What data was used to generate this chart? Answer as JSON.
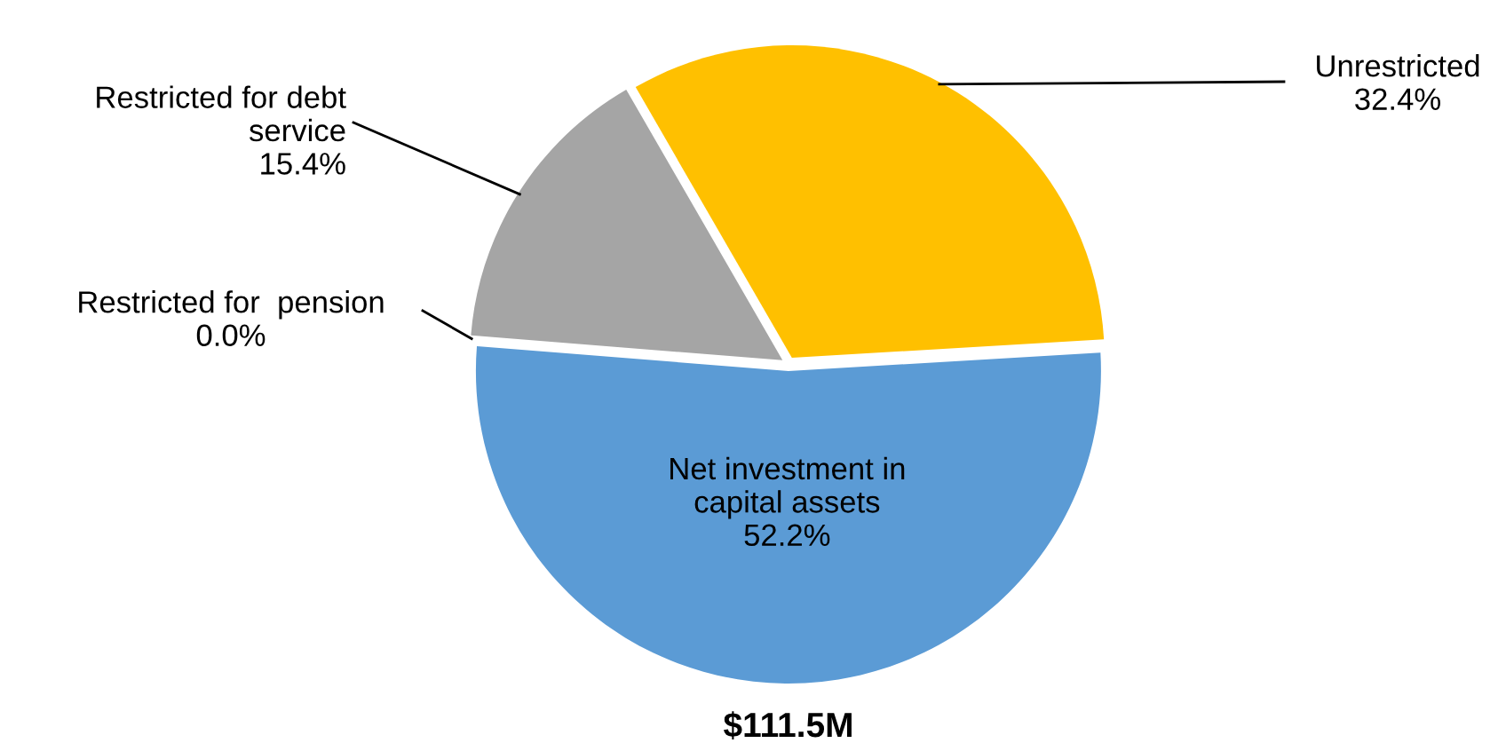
{
  "chart_data": {
    "type": "pie",
    "title": "$111.5M",
    "categories": [
      "Unrestricted",
      "Net investment in\ncapital assets",
      "Restricted for  pension",
      "Restricted for debt\nservice"
    ],
    "values": [
      32.4,
      52.2,
      0.0,
      15.4
    ],
    "colors": [
      "#ffc000",
      "#5b9bd5",
      "#ed7d31",
      "#a5a5a5"
    ],
    "value_labels": [
      "32.4%",
      "52.2%",
      "0.0%",
      "15.4%"
    ]
  }
}
